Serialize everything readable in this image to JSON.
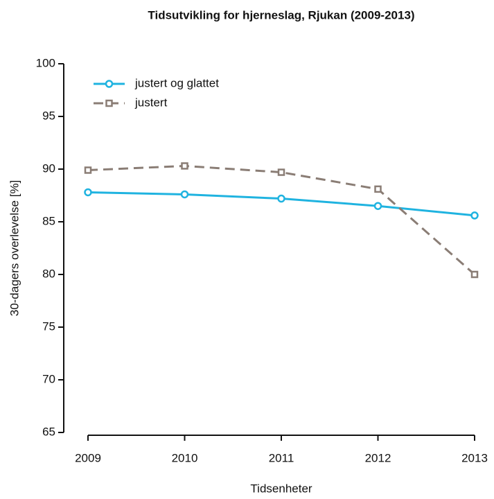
{
  "chart_data": {
    "type": "line",
    "title": "Tidsutvikling for hjerneslag, Rjukan (2009-2013)",
    "x_label": "Tidsenheter",
    "y_label": "30-dagers overlevelse [%]",
    "x": [
      2009,
      2010,
      2011,
      2012,
      2013
    ],
    "series": [
      {
        "name": "justert og glattet",
        "color": "#1fb3e0",
        "linestyle": "solid",
        "marker": "circle",
        "values": [
          87.8,
          87.6,
          87.2,
          86.5,
          85.6
        ]
      },
      {
        "name": "justert",
        "color": "#8a7d75",
        "linestyle": "dashed",
        "marker": "square",
        "values": [
          89.9,
          90.3,
          89.7,
          88.1,
          80.0
        ]
      }
    ],
    "xlim": [
      2009,
      2013
    ],
    "xticks": [
      2009,
      2010,
      2011,
      2012,
      2013
    ],
    "ylim": [
      65,
      100
    ],
    "yticks": [
      65,
      70,
      75,
      80,
      85,
      90,
      95,
      100
    ],
    "legend": "top-left"
  }
}
